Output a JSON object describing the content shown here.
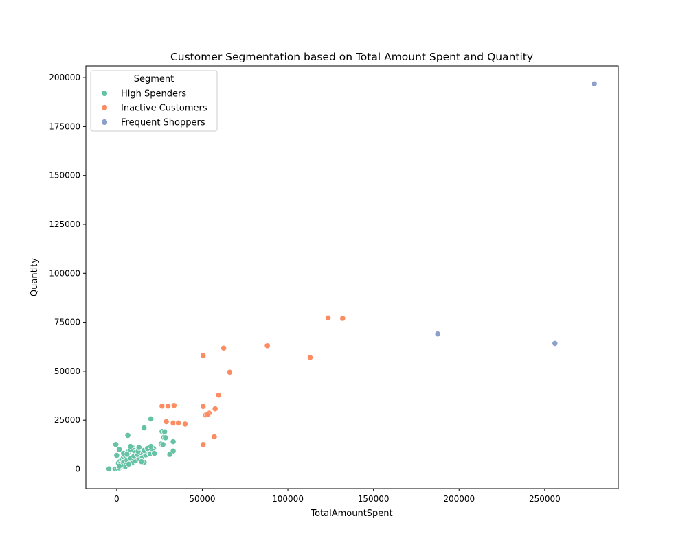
{
  "chart_data": {
    "type": "scatter",
    "title": "Customer Segmentation based on Total Amount Spent and Quantity",
    "xlabel": "TotalAmountSpent",
    "ylabel": "Quantity",
    "xlim": [
      -18000,
      293000
    ],
    "ylim": [
      -10000,
      206000
    ],
    "x_ticks": [
      0,
      50000,
      100000,
      150000,
      200000,
      250000
    ],
    "y_ticks": [
      0,
      25000,
      50000,
      75000,
      100000,
      125000,
      150000,
      175000,
      200000
    ],
    "grid": false,
    "legend": {
      "title": "Segment",
      "placement": "top-left"
    },
    "series": [
      {
        "name": "High Spenders",
        "color": "#66c2a5",
        "points": [
          [
            -4500,
            100
          ],
          [
            -1000,
            0
          ],
          [
            500,
            200
          ],
          [
            1500,
            500
          ],
          [
            2500,
            1000
          ],
          [
            3500,
            1500
          ],
          [
            4500,
            2000
          ],
          [
            5500,
            2500
          ],
          [
            6500,
            3000
          ],
          [
            7500,
            3500
          ],
          [
            8500,
            4000
          ],
          [
            9500,
            4500
          ],
          [
            10500,
            5000
          ],
          [
            11500,
            5500
          ],
          [
            12500,
            6000
          ],
          [
            13500,
            6500
          ],
          [
            14500,
            7000
          ],
          [
            15500,
            7500
          ],
          [
            16500,
            8000
          ],
          [
            17500,
            8500
          ],
          [
            18500,
            9000
          ],
          [
            19500,
            9500
          ],
          [
            20500,
            10000
          ],
          [
            21500,
            10500
          ],
          [
            1000,
            3000
          ],
          [
            2000,
            4000
          ],
          [
            3000,
            5000
          ],
          [
            4000,
            6000
          ],
          [
            5000,
            7000
          ],
          [
            6000,
            8000
          ],
          [
            7000,
            9000
          ],
          [
            8000,
            10000
          ],
          [
            9000,
            11000
          ],
          [
            10000,
            9500
          ],
          [
            11000,
            8500
          ],
          [
            12000,
            7500
          ],
          [
            13000,
            6500
          ],
          [
            14000,
            5500
          ],
          [
            15000,
            4500
          ],
          [
            16000,
            3500
          ],
          [
            3000,
            1500
          ],
          [
            5000,
            1200
          ],
          [
            7000,
            2200
          ],
          [
            9000,
            3200
          ],
          [
            11000,
            4200
          ],
          [
            13000,
            5200
          ],
          [
            15000,
            6200
          ],
          [
            17000,
            7200
          ],
          [
            19000,
            8200
          ],
          [
            21000,
            9200
          ],
          [
            2000,
            2500
          ],
          [
            4000,
            3500
          ],
          [
            6000,
            4500
          ],
          [
            8000,
            5500
          ],
          [
            10000,
            6500
          ],
          [
            12000,
            7500
          ],
          [
            14000,
            8500
          ],
          [
            16000,
            9500
          ],
          [
            18000,
            10500
          ],
          [
            20000,
            11500
          ],
          [
            0,
            7000
          ],
          [
            -500,
            12500
          ],
          [
            1500,
            10000
          ],
          [
            4000,
            8000
          ],
          [
            6500,
            17200
          ],
          [
            8000,
            11500
          ],
          [
            12500,
            9000
          ],
          [
            13000,
            11000
          ],
          [
            14500,
            3800
          ],
          [
            19500,
            7800
          ],
          [
            22000,
            8000
          ],
          [
            2500,
            1800
          ],
          [
            7000,
            2500
          ],
          [
            6000,
            7600
          ],
          [
            20000,
            25600
          ],
          [
            16000,
            21000
          ],
          [
            26500,
            19200
          ],
          [
            28000,
            19000
          ],
          [
            27500,
            16200
          ],
          [
            28500,
            16000
          ],
          [
            26000,
            12800
          ],
          [
            27000,
            12500
          ],
          [
            33000,
            14000
          ],
          [
            33000,
            9200
          ],
          [
            31000,
            7500
          ],
          [
            1500,
            1500
          ]
        ]
      },
      {
        "name": "Inactive Customers",
        "color": "#fc8d62",
        "points": [
          [
            123500,
            77200
          ],
          [
            132000,
            77000
          ],
          [
            88000,
            63000
          ],
          [
            62500,
            61800
          ],
          [
            50500,
            58000
          ],
          [
            113000,
            57000
          ],
          [
            66000,
            49500
          ],
          [
            59500,
            37800
          ],
          [
            33500,
            32500
          ],
          [
            26500,
            32200
          ],
          [
            30000,
            32200
          ],
          [
            50500,
            32000
          ],
          [
            57500,
            30800
          ],
          [
            54000,
            28500
          ],
          [
            52000,
            27600
          ],
          [
            53000,
            27800
          ],
          [
            29000,
            24200
          ],
          [
            33000,
            23500
          ],
          [
            36000,
            23500
          ],
          [
            40000,
            23000
          ],
          [
            57000,
            16500
          ],
          [
            50500,
            12500
          ]
        ]
      },
      {
        "name": "Frequent Shoppers",
        "color": "#8da0cb",
        "points": [
          [
            279000,
            196800
          ],
          [
            187500,
            69000
          ],
          [
            256000,
            64200
          ]
        ]
      }
    ]
  }
}
